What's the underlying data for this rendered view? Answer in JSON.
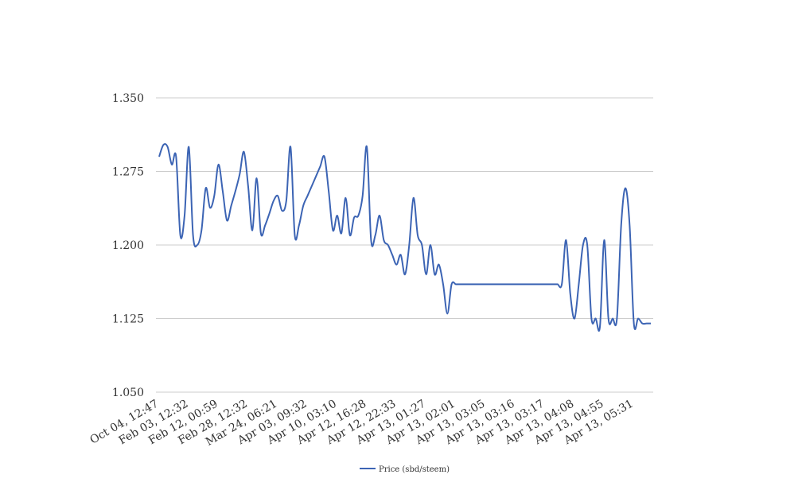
{
  "chart_data": {
    "type": "line",
    "title": "",
    "xlabel": "",
    "ylabel": "",
    "ylim": [
      1.05,
      1.35
    ],
    "yticks": [
      "1.050",
      "1.125",
      "1.200",
      "1.275",
      "1.350"
    ],
    "ytick_values": [
      1.05,
      1.125,
      1.2,
      1.275,
      1.35
    ],
    "grid": true,
    "legend_position": "bottom-center",
    "color": "#3c64b4",
    "xtick_labels": [
      "Oct 04, 12:47",
      "Feb 03, 12:32",
      "Feb 12, 00:59",
      "Feb 28, 12:32",
      "Mar 24, 06:21",
      "Apr 03, 09:32",
      "Apr 10, 03:10",
      "Apr 12, 16:28",
      "Apr 12, 22:33",
      "Apr 13, 01:27",
      "Apr 13, 02:01",
      "Apr 13, 03:05",
      "Apr 13, 03:16",
      "Apr 13, 03:17",
      "Apr 13, 04:08",
      "Apr 13, 04:55",
      "Apr 13, 05:31"
    ],
    "series": [
      {
        "name": "Price (sbd/steem)",
        "values": [
          1.29,
          1.302,
          1.3,
          1.282,
          1.29,
          1.21,
          1.23,
          1.3,
          1.21,
          1.2,
          1.215,
          1.258,
          1.238,
          1.25,
          1.282,
          1.255,
          1.225,
          1.24,
          1.255,
          1.272,
          1.295,
          1.26,
          1.215,
          1.268,
          1.212,
          1.22,
          1.232,
          1.245,
          1.25,
          1.235,
          1.245,
          1.3,
          1.21,
          1.22,
          1.24,
          1.25,
          1.26,
          1.27,
          1.28,
          1.29,
          1.255,
          1.215,
          1.23,
          1.212,
          1.248,
          1.21,
          1.228,
          1.23,
          1.25,
          1.3,
          1.205,
          1.21,
          1.23,
          1.205,
          1.2,
          1.19,
          1.18,
          1.19,
          1.17,
          1.2,
          1.248,
          1.21,
          1.2,
          1.17,
          1.2,
          1.17,
          1.18,
          1.16,
          1.13,
          1.16,
          1.16,
          1.16,
          1.16,
          1.16,
          1.16,
          1.16,
          1.16,
          1.16,
          1.16,
          1.16,
          1.16,
          1.16,
          1.16,
          1.16,
          1.16,
          1.16,
          1.16,
          1.16,
          1.16,
          1.16,
          1.16,
          1.16,
          1.16,
          1.16,
          1.16,
          1.16,
          1.205,
          1.15,
          1.125,
          1.16,
          1.2,
          1.2,
          1.125,
          1.125,
          1.117,
          1.205,
          1.125,
          1.125,
          1.125,
          1.22,
          1.258,
          1.22,
          1.12,
          1.125,
          1.12,
          1.12,
          1.12
        ]
      }
    ]
  }
}
